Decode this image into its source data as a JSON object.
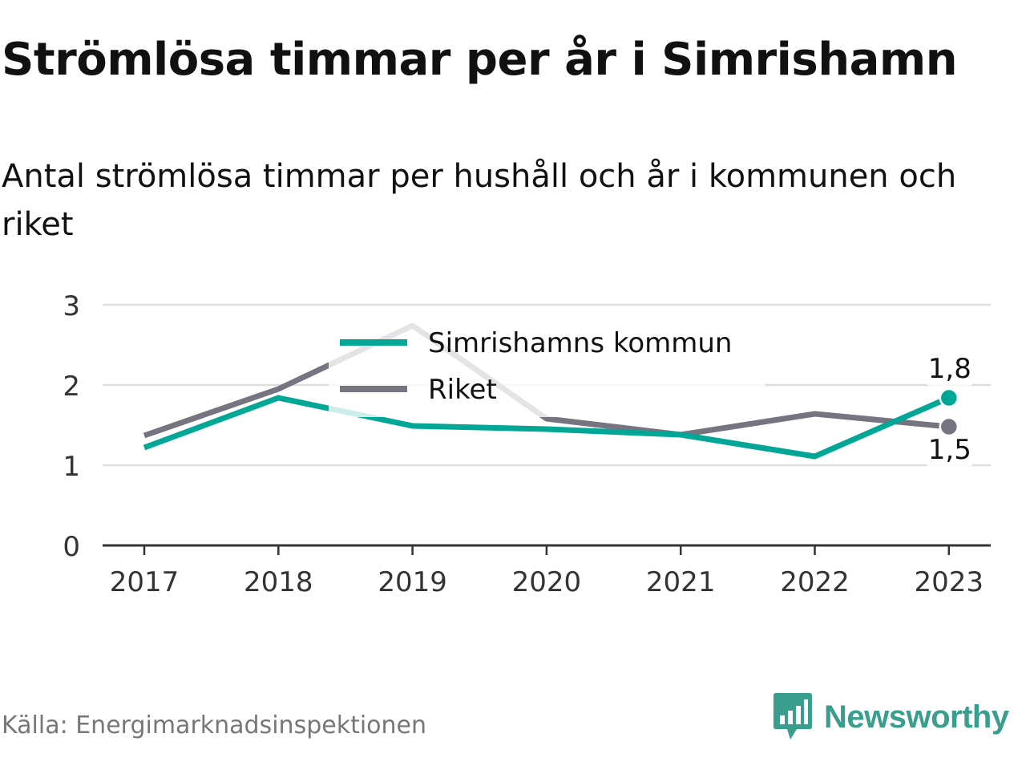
{
  "chart": {
    "title": "Strömlösa timmar per år i Simrishamn",
    "subtitle": "Antal strömlösa timmar per hushåll och år i kommunen och riket",
    "source": "Källa: Energimarknadsinspektionen",
    "brand": "Newsworthy"
  },
  "colors": {
    "series_1": "#00a797",
    "series_2": "#777380",
    "brand": "#3a9e8f",
    "grid": "#dddddd",
    "axis": "#333333"
  },
  "chart_data": {
    "type": "line",
    "title": "Strömlösa timmar per år i Simrishamn",
    "subtitle": "Antal strömlösa timmar per hushåll och år i kommunen och riket",
    "x": [
      "2017",
      "2018",
      "2019",
      "2020",
      "2021",
      "2022",
      "2023"
    ],
    "series": [
      {
        "name": "Simrishamns kommun",
        "color": "#00a797",
        "values": [
          1.22,
          1.84,
          1.49,
          1.45,
          1.38,
          1.11,
          1.84
        ]
      },
      {
        "name": "Riket",
        "color": "#777380",
        "values": [
          1.37,
          1.95,
          2.74,
          1.58,
          1.38,
          1.64,
          1.48
        ]
      }
    ],
    "end_labels": [
      "1,8",
      "1,5"
    ],
    "yticks": [
      "0",
      "1",
      "2",
      "3"
    ],
    "ylim": [
      0,
      3
    ],
    "grid": true,
    "legend": "top-center"
  }
}
